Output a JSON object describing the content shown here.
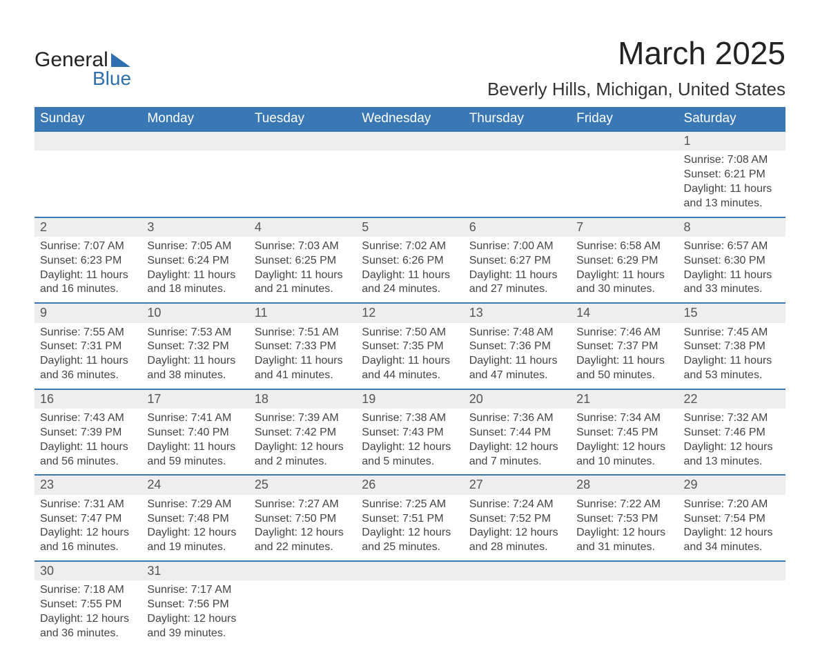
{
  "logo": {
    "word1": "General",
    "word2": "Blue"
  },
  "title": "March 2025",
  "subtitle": "Beverly Hills, Michigan, United States",
  "colors": {
    "header_bg": "#3a78b5",
    "header_text": "#ffffff",
    "daynum_bg": "#eeeeee",
    "row_border": "#3a78b5",
    "text": "#444444",
    "body_bg": "#ffffff",
    "logo_accent": "#2f6fb0"
  },
  "weekdays": [
    "Sunday",
    "Monday",
    "Tuesday",
    "Wednesday",
    "Thursday",
    "Friday",
    "Saturday"
  ],
  "labels": {
    "sunrise": "Sunrise: ",
    "sunset": "Sunset: ",
    "daylight": "Daylight: "
  },
  "weeks": [
    [
      null,
      null,
      null,
      null,
      null,
      null,
      {
        "d": "1",
        "sr": "7:08 AM",
        "ss": "6:21 PM",
        "dl1": "11 hours",
        "dl2": "and 13 minutes."
      }
    ],
    [
      {
        "d": "2",
        "sr": "7:07 AM",
        "ss": "6:23 PM",
        "dl1": "11 hours",
        "dl2": "and 16 minutes."
      },
      {
        "d": "3",
        "sr": "7:05 AM",
        "ss": "6:24 PM",
        "dl1": "11 hours",
        "dl2": "and 18 minutes."
      },
      {
        "d": "4",
        "sr": "7:03 AM",
        "ss": "6:25 PM",
        "dl1": "11 hours",
        "dl2": "and 21 minutes."
      },
      {
        "d": "5",
        "sr": "7:02 AM",
        "ss": "6:26 PM",
        "dl1": "11 hours",
        "dl2": "and 24 minutes."
      },
      {
        "d": "6",
        "sr": "7:00 AM",
        "ss": "6:27 PM",
        "dl1": "11 hours",
        "dl2": "and 27 minutes."
      },
      {
        "d": "7",
        "sr": "6:58 AM",
        "ss": "6:29 PM",
        "dl1": "11 hours",
        "dl2": "and 30 minutes."
      },
      {
        "d": "8",
        "sr": "6:57 AM",
        "ss": "6:30 PM",
        "dl1": "11 hours",
        "dl2": "and 33 minutes."
      }
    ],
    [
      {
        "d": "9",
        "sr": "7:55 AM",
        "ss": "7:31 PM",
        "dl1": "11 hours",
        "dl2": "and 36 minutes."
      },
      {
        "d": "10",
        "sr": "7:53 AM",
        "ss": "7:32 PM",
        "dl1": "11 hours",
        "dl2": "and 38 minutes."
      },
      {
        "d": "11",
        "sr": "7:51 AM",
        "ss": "7:33 PM",
        "dl1": "11 hours",
        "dl2": "and 41 minutes."
      },
      {
        "d": "12",
        "sr": "7:50 AM",
        "ss": "7:35 PM",
        "dl1": "11 hours",
        "dl2": "and 44 minutes."
      },
      {
        "d": "13",
        "sr": "7:48 AM",
        "ss": "7:36 PM",
        "dl1": "11 hours",
        "dl2": "and 47 minutes."
      },
      {
        "d": "14",
        "sr": "7:46 AM",
        "ss": "7:37 PM",
        "dl1": "11 hours",
        "dl2": "and 50 minutes."
      },
      {
        "d": "15",
        "sr": "7:45 AM",
        "ss": "7:38 PM",
        "dl1": "11 hours",
        "dl2": "and 53 minutes."
      }
    ],
    [
      {
        "d": "16",
        "sr": "7:43 AM",
        "ss": "7:39 PM",
        "dl1": "11 hours",
        "dl2": "and 56 minutes."
      },
      {
        "d": "17",
        "sr": "7:41 AM",
        "ss": "7:40 PM",
        "dl1": "11 hours",
        "dl2": "and 59 minutes."
      },
      {
        "d": "18",
        "sr": "7:39 AM",
        "ss": "7:42 PM",
        "dl1": "12 hours",
        "dl2": "and 2 minutes."
      },
      {
        "d": "19",
        "sr": "7:38 AM",
        "ss": "7:43 PM",
        "dl1": "12 hours",
        "dl2": "and 5 minutes."
      },
      {
        "d": "20",
        "sr": "7:36 AM",
        "ss": "7:44 PM",
        "dl1": "12 hours",
        "dl2": "and 7 minutes."
      },
      {
        "d": "21",
        "sr": "7:34 AM",
        "ss": "7:45 PM",
        "dl1": "12 hours",
        "dl2": "and 10 minutes."
      },
      {
        "d": "22",
        "sr": "7:32 AM",
        "ss": "7:46 PM",
        "dl1": "12 hours",
        "dl2": "and 13 minutes."
      }
    ],
    [
      {
        "d": "23",
        "sr": "7:31 AM",
        "ss": "7:47 PM",
        "dl1": "12 hours",
        "dl2": "and 16 minutes."
      },
      {
        "d": "24",
        "sr": "7:29 AM",
        "ss": "7:48 PM",
        "dl1": "12 hours",
        "dl2": "and 19 minutes."
      },
      {
        "d": "25",
        "sr": "7:27 AM",
        "ss": "7:50 PM",
        "dl1": "12 hours",
        "dl2": "and 22 minutes."
      },
      {
        "d": "26",
        "sr": "7:25 AM",
        "ss": "7:51 PM",
        "dl1": "12 hours",
        "dl2": "and 25 minutes."
      },
      {
        "d": "27",
        "sr": "7:24 AM",
        "ss": "7:52 PM",
        "dl1": "12 hours",
        "dl2": "and 28 minutes."
      },
      {
        "d": "28",
        "sr": "7:22 AM",
        "ss": "7:53 PM",
        "dl1": "12 hours",
        "dl2": "and 31 minutes."
      },
      {
        "d": "29",
        "sr": "7:20 AM",
        "ss": "7:54 PM",
        "dl1": "12 hours",
        "dl2": "and 34 minutes."
      }
    ],
    [
      {
        "d": "30",
        "sr": "7:18 AM",
        "ss": "7:55 PM",
        "dl1": "12 hours",
        "dl2": "and 36 minutes."
      },
      {
        "d": "31",
        "sr": "7:17 AM",
        "ss": "7:56 PM",
        "dl1": "12 hours",
        "dl2": "and 39 minutes."
      },
      null,
      null,
      null,
      null,
      null
    ]
  ]
}
